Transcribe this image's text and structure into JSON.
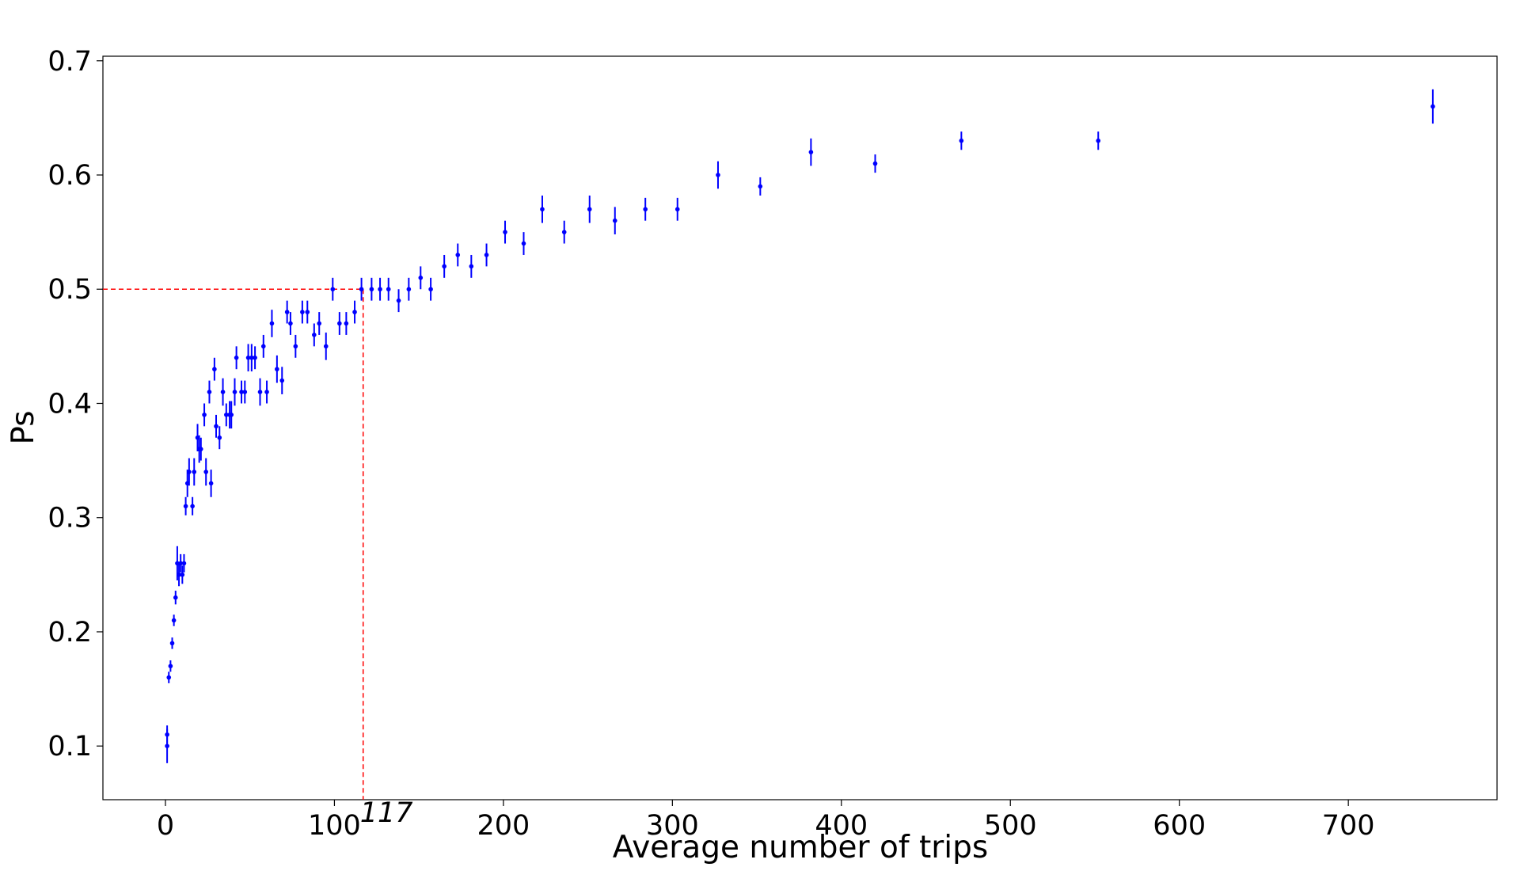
{
  "chart_data": {
    "type": "errorbar",
    "xlabel": "Average number of trips",
    "ylabel": "Ps",
    "xlim": [
      -37,
      788
    ],
    "ylim": [
      0.053,
      0.704
    ],
    "xticks": [
      0,
      100,
      200,
      300,
      400,
      500,
      600,
      700
    ],
    "yticks": [
      0.1,
      0.2,
      0.3,
      0.4,
      0.5,
      0.6,
      0.7
    ],
    "color": "#0000ff",
    "ref_color": "#ff0000",
    "ref_x": 117,
    "ref_y": 0.5,
    "x": [
      1,
      1,
      2,
      3,
      4,
      5,
      6,
      7,
      8,
      9,
      10,
      11,
      12,
      13,
      14,
      16,
      17,
      19,
      20,
      21,
      23,
      24,
      26,
      27,
      29,
      30,
      32,
      34,
      36,
      38,
      39,
      41,
      42,
      45,
      47,
      49,
      51,
      53,
      56,
      58,
      60,
      63,
      66,
      69,
      72,
      74,
      77,
      81,
      84,
      88,
      91,
      95,
      99,
      103,
      107,
      112,
      116,
      122,
      127,
      132,
      138,
      144,
      151,
      157,
      165,
      173,
      181,
      190,
      201,
      212,
      223,
      236,
      251,
      266,
      284,
      303,
      327,
      352,
      382,
      420,
      471,
      552,
      750
    ],
    "values": [
      0.11,
      0.1,
      0.16,
      0.17,
      0.19,
      0.21,
      0.23,
      0.26,
      0.25,
      0.26,
      0.25,
      0.26,
      0.31,
      0.33,
      0.34,
      0.31,
      0.34,
      0.37,
      0.36,
      0.36,
      0.39,
      0.34,
      0.41,
      0.33,
      0.43,
      0.38,
      0.37,
      0.41,
      0.39,
      0.39,
      0.39,
      0.41,
      0.44,
      0.41,
      0.41,
      0.44,
      0.44,
      0.44,
      0.41,
      0.45,
      0.41,
      0.47,
      0.43,
      0.42,
      0.48,
      0.47,
      0.45,
      0.48,
      0.48,
      0.46,
      0.47,
      0.45,
      0.5,
      0.47,
      0.47,
      0.48,
      0.5,
      0.5,
      0.5,
      0.5,
      0.49,
      0.5,
      0.51,
      0.5,
      0.52,
      0.53,
      0.52,
      0.53,
      0.55,
      0.54,
      0.57,
      0.55,
      0.57,
      0.56,
      0.57,
      0.57,
      0.6,
      0.59,
      0.62,
      0.61,
      0.63,
      0.63,
      0.66
    ],
    "errors": [
      0.008,
      0.015,
      0.005,
      0.005,
      0.005,
      0.005,
      0.006,
      0.015,
      0.01,
      0.008,
      0.008,
      0.008,
      0.008,
      0.012,
      0.012,
      0.008,
      0.012,
      0.012,
      0.012,
      0.01,
      0.01,
      0.012,
      0.01,
      0.012,
      0.01,
      0.01,
      0.01,
      0.012,
      0.01,
      0.012,
      0.012,
      0.012,
      0.01,
      0.01,
      0.01,
      0.012,
      0.012,
      0.01,
      0.012,
      0.01,
      0.01,
      0.012,
      0.012,
      0.012,
      0.01,
      0.01,
      0.01,
      0.01,
      0.01,
      0.01,
      0.01,
      0.012,
      0.01,
      0.01,
      0.01,
      0.01,
      0.01,
      0.01,
      0.01,
      0.01,
      0.01,
      0.01,
      0.01,
      0.01,
      0.01,
      0.01,
      0.01,
      0.01,
      0.01,
      0.01,
      0.012,
      0.01,
      0.012,
      0.012,
      0.01,
      0.01,
      0.012,
      0.008,
      0.012,
      0.008,
      0.008,
      0.008,
      0.015
    ]
  }
}
